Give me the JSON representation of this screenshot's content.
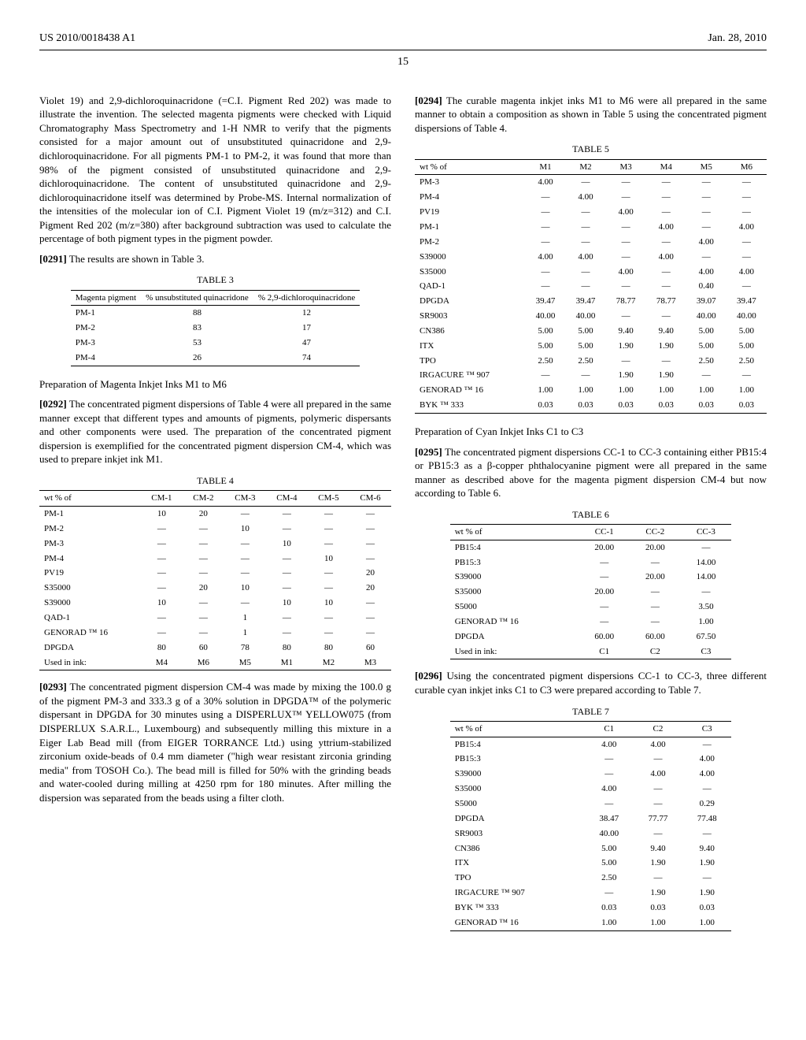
{
  "header": {
    "left": "US 2010/0018438 A1",
    "right": "Jan. 28, 2010"
  },
  "page_number": "15",
  "col1": {
    "p1": "Violet 19) and 2,9-dichloroquinacridone (=C.I. Pigment Red 202) was made to illustrate the invention. The selected magenta pigments were checked with Liquid Chromatography Mass Spectrometry and 1-H NMR to verify that the pigments consisted for a major amount out of unsubstituted quinacridone and 2,9-dichloroquinacridone. For all pigments PM-1 to PM-2, it was found that more than 98% of the pigment consisted of unsubstituted quinacridone and 2,9-dichloroquinacridone. The content of unsubstituted quinacridone and 2,9-dichloroquinacridone itself was determined by Probe-MS. Internal normalization of the intensities of the molecular ion of C.I. Pigment Violet 19 (m/z=312) and C.I. Pigment Red 202 (m/z=380) after background subtraction was used to calculate the percentage of both pigment types in the pigment powder.",
    "p2_num": "[0291]",
    "p2": "The results are shown in Table 3.",
    "table3": {
      "caption": "TABLE 3",
      "headers": [
        "Magenta pigment",
        "% unsubstituted quinacridone",
        "% 2,9-dichloroquinacridone"
      ],
      "rows": [
        [
          "PM-1",
          "88",
          "12"
        ],
        [
          "PM-2",
          "83",
          "17"
        ],
        [
          "PM-3",
          "53",
          "47"
        ],
        [
          "PM-4",
          "26",
          "74"
        ]
      ]
    },
    "sec1_title": "Preparation of Magenta Inkjet Inks M1 to M6",
    "p3_num": "[0292]",
    "p3": "The concentrated pigment dispersions of Table 4 were all prepared in the same manner except that different types and amounts of pigments, polymeric dispersants and other components were used. The preparation of the concentrated pigment dispersion is exemplified for the concentrated pigment dispersion CM-4, which was used to prepare inkjet ink M1.",
    "table4": {
      "caption": "TABLE 4",
      "headers": [
        "wt % of",
        "CM-1",
        "CM-2",
        "CM-3",
        "CM-4",
        "CM-5",
        "CM-6"
      ],
      "rows": [
        [
          "PM-1",
          "10",
          "20",
          "—",
          "—",
          "—",
          "—"
        ],
        [
          "PM-2",
          "—",
          "—",
          "10",
          "—",
          "—",
          "—"
        ],
        [
          "PM-3",
          "—",
          "—",
          "—",
          "10",
          "—",
          "—"
        ],
        [
          "PM-4",
          "—",
          "—",
          "—",
          "—",
          "10",
          "—"
        ],
        [
          "PV19",
          "—",
          "—",
          "—",
          "—",
          "—",
          "20"
        ],
        [
          "S35000",
          "—",
          "20",
          "10",
          "—",
          "—",
          "20"
        ],
        [
          "S39000",
          "10",
          "—",
          "—",
          "10",
          "10",
          "—"
        ],
        [
          "QAD-1",
          "—",
          "—",
          "1",
          "—",
          "—",
          "—"
        ],
        [
          "GENORAD ™ 16",
          "—",
          "—",
          "1",
          "—",
          "—",
          "—"
        ],
        [
          "DPGDA",
          "80",
          "60",
          "78",
          "80",
          "80",
          "60"
        ],
        [
          "Used in ink:",
          "M4",
          "M6",
          "M5",
          "M1",
          "M2",
          "M3"
        ]
      ]
    },
    "p4_num": "[0293]",
    "p4": "The concentrated pigment dispersion CM-4 was made by mixing the 100.0 g of the pigment PM-3 and 333.3 g of a 30% solution in DPGDA™ of the polymeric dispersant in DPGDA for 30 minutes using a DISPERLUX™ YELLOW075 (from DISPERLUX S.A.R.L., Luxembourg) and subsequently milling this mixture in a Eiger Lab Bead mill (from EIGER TORRANCE Ltd.) using yttrium-stabilized zirconium oxide-beads of 0.4 mm diameter (\"high wear resistant zirconia grinding media\" from TOSOH Co.). The bead mill is filled for 50% with the grinding beads and water-cooled during milling at 4250 rpm for 180 minutes. After milling the dispersion was separated from the beads using a filter cloth."
  },
  "col2": {
    "p1_num": "[0294]",
    "p1": "The curable magenta inkjet inks M1 to M6 were all prepared in the same manner to obtain a composition as shown in Table 5 using the concentrated pigment dispersions of Table 4.",
    "table5": {
      "caption": "TABLE 5",
      "headers": [
        "wt % of",
        "M1",
        "M2",
        "M3",
        "M4",
        "M5",
        "M6"
      ],
      "rows": [
        [
          "PM-3",
          "4.00",
          "—",
          "—",
          "—",
          "—",
          "—"
        ],
        [
          "PM-4",
          "—",
          "4.00",
          "—",
          "—",
          "—",
          "—"
        ],
        [
          "PV19",
          "—",
          "—",
          "4.00",
          "—",
          "—",
          "—"
        ],
        [
          "PM-1",
          "—",
          "—",
          "—",
          "4.00",
          "—",
          "4.00"
        ],
        [
          "PM-2",
          "—",
          "—",
          "—",
          "—",
          "4.00",
          "—"
        ],
        [
          "S39000",
          "4.00",
          "4.00",
          "—",
          "4.00",
          "—",
          "—"
        ],
        [
          "S35000",
          "—",
          "—",
          "4.00",
          "—",
          "4.00",
          "4.00"
        ],
        [
          "QAD-1",
          "—",
          "—",
          "—",
          "—",
          "0.40",
          "—"
        ],
        [
          "DPGDA",
          "39.47",
          "39.47",
          "78.77",
          "78.77",
          "39.07",
          "39.47"
        ],
        [
          "SR9003",
          "40.00",
          "40.00",
          "—",
          "—",
          "40.00",
          "40.00"
        ],
        [
          "CN386",
          "5.00",
          "5.00",
          "9.40",
          "9.40",
          "5.00",
          "5.00"
        ],
        [
          "ITX",
          "5.00",
          "5.00",
          "1.90",
          "1.90",
          "5.00",
          "5.00"
        ],
        [
          "TPO",
          "2.50",
          "2.50",
          "—",
          "—",
          "2.50",
          "2.50"
        ],
        [
          "IRGACURE ™ 907",
          "—",
          "—",
          "1.90",
          "1.90",
          "—",
          "—"
        ],
        [
          "GENORAD ™ 16",
          "1.00",
          "1.00",
          "1.00",
          "1.00",
          "1.00",
          "1.00"
        ],
        [
          "BYK ™ 333",
          "0.03",
          "0.03",
          "0.03",
          "0.03",
          "0.03",
          "0.03"
        ]
      ]
    },
    "sec1_title": "Preparation of Cyan Inkjet Inks C1 to C3",
    "p2_num": "[0295]",
    "p2": "The concentrated pigment dispersions CC-1 to CC-3 containing either PB15:4 or PB15:3 as a β-copper phthalocyanine pigment were all prepared in the same manner as described above for the magenta pigment dispersion CM-4 but now according to Table 6.",
    "table6": {
      "caption": "TABLE 6",
      "headers": [
        "wt % of",
        "CC-1",
        "CC-2",
        "CC-3"
      ],
      "rows": [
        [
          "PB15:4",
          "20.00",
          "20.00",
          "—"
        ],
        [
          "PB15:3",
          "—",
          "—",
          "14.00"
        ],
        [
          "S39000",
          "—",
          "20.00",
          "14.00"
        ],
        [
          "S35000",
          "20.00",
          "—",
          "—"
        ],
        [
          "S5000",
          "—",
          "—",
          "3.50"
        ],
        [
          "GENORAD ™ 16",
          "—",
          "—",
          "1.00"
        ],
        [
          "DPGDA",
          "60.00",
          "60.00",
          "67.50"
        ],
        [
          "Used in ink:",
          "C1",
          "C2",
          "C3"
        ]
      ]
    },
    "p3_num": "[0296]",
    "p3": "Using the concentrated pigment dispersions CC-1 to CC-3, three different curable cyan inkjet inks C1 to C3 were prepared according to Table 7.",
    "table7": {
      "caption": "TABLE 7",
      "headers": [
        "wt % of",
        "C1",
        "C2",
        "C3"
      ],
      "rows": [
        [
          "PB15:4",
          "4.00",
          "4.00",
          "—"
        ],
        [
          "PB15:3",
          "—",
          "—",
          "4.00"
        ],
        [
          "S39000",
          "—",
          "4.00",
          "4.00"
        ],
        [
          "S35000",
          "4.00",
          "—",
          "—"
        ],
        [
          "S5000",
          "—",
          "—",
          "0.29"
        ],
        [
          "DPGDA",
          "38.47",
          "77.77",
          "77.48"
        ],
        [
          "SR9003",
          "40.00",
          "—",
          "—"
        ],
        [
          "CN386",
          "5.00",
          "9.40",
          "9.40"
        ],
        [
          "ITX",
          "5.00",
          "1.90",
          "1.90"
        ],
        [
          "TPO",
          "2.50",
          "—",
          "—"
        ],
        [
          "IRGACURE ™ 907",
          "—",
          "1.90",
          "1.90"
        ],
        [
          "BYK ™ 333",
          "0.03",
          "0.03",
          "0.03"
        ],
        [
          "GENORAD ™ 16",
          "1.00",
          "1.00",
          "1.00"
        ]
      ]
    }
  }
}
